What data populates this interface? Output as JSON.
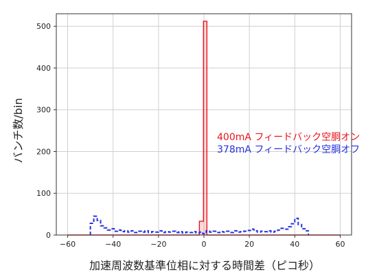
{
  "chart_data": {
    "type": "histogram",
    "xlabel": "加速周波数基準位相に対する時間差（ピコ秒）",
    "ylabel": "バンチ数/bin",
    "xlim": [
      -65,
      65
    ],
    "ylim": [
      0,
      530
    ],
    "xticks": [
      -60,
      -40,
      -20,
      0,
      20,
      40,
      60
    ],
    "yticks": [
      0,
      100,
      200,
      300,
      400,
      500
    ],
    "grid": true,
    "legend_position": "right",
    "series": [
      {
        "name": "400mA フィードバック空胴オン",
        "color": "#e8141b",
        "style": "solid",
        "bins": [
          {
            "x0": -60,
            "x1": -2,
            "y": 0
          },
          {
            "x0": -2,
            "x1": -0.2,
            "y": 33
          },
          {
            "x0": -0.2,
            "x1": 1.3,
            "y": 512
          },
          {
            "x0": 1.3,
            "x1": 60,
            "y": 0
          }
        ]
      },
      {
        "name": "378mA フィードバック空胴オフ",
        "color": "#2530e0",
        "style": "dashed",
        "bins": [
          {
            "x0": -50,
            "x1": -48.5,
            "y": 28
          },
          {
            "x0": -48.5,
            "x1": -47,
            "y": 45
          },
          {
            "x0": -47,
            "x1": -45.5,
            "y": 35
          },
          {
            "x0": -45.5,
            "x1": -44,
            "y": 22
          },
          {
            "x0": -44,
            "x1": -42.5,
            "y": 17
          },
          {
            "x0": -42.5,
            "x1": -41,
            "y": 12
          },
          {
            "x0": -41,
            "x1": -39.5,
            "y": 15
          },
          {
            "x0": -39.5,
            "x1": -38,
            "y": 9
          },
          {
            "x0": -38,
            "x1": -36.5,
            "y": 12
          },
          {
            "x0": -36.5,
            "x1": -35,
            "y": 8
          },
          {
            "x0": -35,
            "x1": -33.5,
            "y": 10
          },
          {
            "x0": -33.5,
            "x1": -32,
            "y": 7
          },
          {
            "x0": -32,
            "x1": -30.5,
            "y": 10
          },
          {
            "x0": -30.5,
            "x1": -29,
            "y": 6
          },
          {
            "x0": -29,
            "x1": -27.5,
            "y": 9
          },
          {
            "x0": -27.5,
            "x1": -26,
            "y": 7
          },
          {
            "x0": -26,
            "x1": -24.5,
            "y": 10
          },
          {
            "x0": -24.5,
            "x1": -23,
            "y": 6
          },
          {
            "x0": -23,
            "x1": -21.5,
            "y": 8
          },
          {
            "x0": -21.5,
            "x1": -20,
            "y": 7
          },
          {
            "x0": -20,
            "x1": -18.5,
            "y": 10
          },
          {
            "x0": -18.5,
            "x1": -17,
            "y": 6
          },
          {
            "x0": -17,
            "x1": -15.5,
            "y": 8
          },
          {
            "x0": -15.5,
            "x1": -14,
            "y": 7
          },
          {
            "x0": -14,
            "x1": -12.5,
            "y": 9
          },
          {
            "x0": -12.5,
            "x1": -11,
            "y": 6
          },
          {
            "x0": -11,
            "x1": -9.5,
            "y": 8
          },
          {
            "x0": -9.5,
            "x1": -8,
            "y": 5
          },
          {
            "x0": -8,
            "x1": -6.5,
            "y": 7
          },
          {
            "x0": -6.5,
            "x1": -5,
            "y": 6
          },
          {
            "x0": -5,
            "x1": -3.5,
            "y": 8
          },
          {
            "x0": -3.5,
            "x1": -2,
            "y": 5
          },
          {
            "x0": -2,
            "x1": -0.5,
            "y": 7
          },
          {
            "x0": -0.5,
            "x1": 1,
            "y": 3
          },
          {
            "x0": 1,
            "x1": 2.5,
            "y": 10
          },
          {
            "x0": 2.5,
            "x1": 4,
            "y": 7
          },
          {
            "x0": 4,
            "x1": 5.5,
            "y": 9
          },
          {
            "x0": 5.5,
            "x1": 7,
            "y": 6
          },
          {
            "x0": 7,
            "x1": 8.5,
            "y": 8
          },
          {
            "x0": 8.5,
            "x1": 10,
            "y": 7
          },
          {
            "x0": 10,
            "x1": 11.5,
            "y": 9
          },
          {
            "x0": 11.5,
            "x1": 13,
            "y": 6
          },
          {
            "x0": 13,
            "x1": 14.5,
            "y": 10
          },
          {
            "x0": 14.5,
            "x1": 16,
            "y": 7
          },
          {
            "x0": 16,
            "x1": 17.5,
            "y": 8
          },
          {
            "x0": 17.5,
            "x1": 19,
            "y": 9
          },
          {
            "x0": 19,
            "x1": 20.5,
            "y": 11
          },
          {
            "x0": 20.5,
            "x1": 22,
            "y": 14
          },
          {
            "x0": 22,
            "x1": 23.5,
            "y": 10
          },
          {
            "x0": 23.5,
            "x1": 25,
            "y": 7
          },
          {
            "x0": 25,
            "x1": 26.5,
            "y": 9
          },
          {
            "x0": 26.5,
            "x1": 28,
            "y": 8
          },
          {
            "x0": 28,
            "x1": 29.5,
            "y": 10
          },
          {
            "x0": 29.5,
            "x1": 31,
            "y": 7
          },
          {
            "x0": 31,
            "x1": 32.5,
            "y": 9
          },
          {
            "x0": 32.5,
            "x1": 34,
            "y": 12
          },
          {
            "x0": 34,
            "x1": 35.5,
            "y": 16
          },
          {
            "x0": 35.5,
            "x1": 37,
            "y": 14
          },
          {
            "x0": 37,
            "x1": 38.5,
            "y": 20
          },
          {
            "x0": 38.5,
            "x1": 40,
            "y": 27
          },
          {
            "x0": 40,
            "x1": 41.5,
            "y": 40
          },
          {
            "x0": 41.5,
            "x1": 43,
            "y": 25
          },
          {
            "x0": 43,
            "x1": 44.5,
            "y": 15
          },
          {
            "x0": 44.5,
            "x1": 46,
            "y": 10
          }
        ]
      }
    ]
  }
}
